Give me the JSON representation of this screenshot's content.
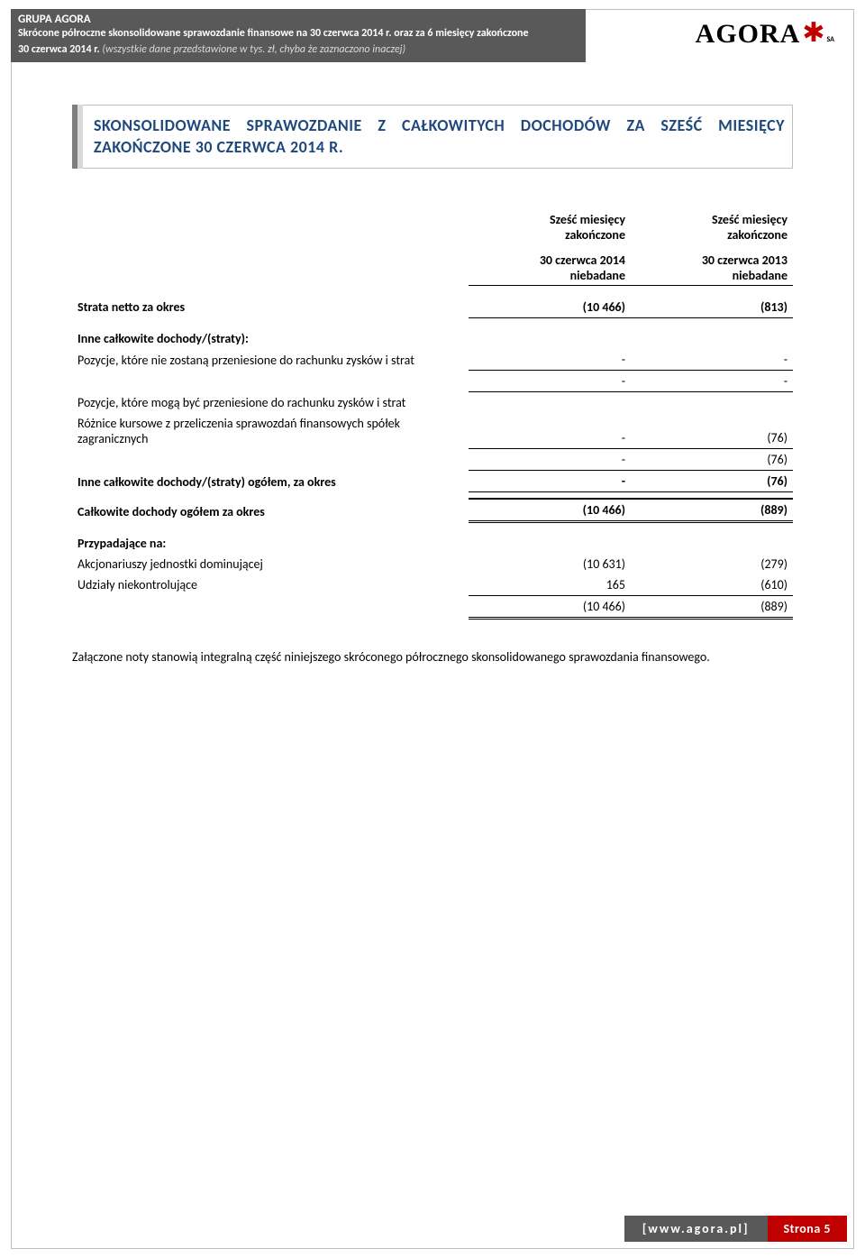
{
  "header": {
    "line1": "GRUPA AGORA",
    "line2": "Skrócone półroczne skonsolidowane sprawozdanie finansowe na 30 czerwca 2014 r. oraz za 6 miesięcy zakończone",
    "line3_bold": "30 czerwca 2014 r.",
    "line3_rest": " (wszystkie dane przedstawione w tys. zł, chyba że zaznaczono inaczej)"
  },
  "logo": {
    "text": "AGORA",
    "suffix": "SA"
  },
  "title": "SKONSOLIDOWANE SPRAWOZDANIE Z CAŁKOWITYCH DOCHODÓW ZA SZEŚĆ MIESIĘCY ZAKOŃCZONE 30 CZERWCA 2014 R.",
  "col_headers": {
    "c1_a": "Sześć miesięcy",
    "c1_b": "zakończone",
    "c2_a": "Sześć miesięcy",
    "c2_b": "zakończone",
    "c1_c": "30 czerwca 2014",
    "c1_d": "niebadane",
    "c2_c": "30 czerwca 2013",
    "c2_d": "niebadane"
  },
  "rows": {
    "strata": {
      "label": "Strata netto za okres",
      "v1": "(10 466)",
      "v2": "(813)"
    },
    "inne_heading": "Inne całkowite dochody/(straty):",
    "pozycje_nie": {
      "label": "Pozycje, które nie zostaną przeniesione do rachunku zysków i strat",
      "v1": "-",
      "v2": "-"
    },
    "blank1": {
      "v1": "-",
      "v2": "-"
    },
    "pozycje_moga": "Pozycje, które mogą być przeniesione do rachunku zysków i strat",
    "roznice": {
      "label": "Różnice kursowe z przeliczenia sprawozdań finansowych spółek zagranicznych",
      "v1": "-",
      "v2": "(76)"
    },
    "blank2": {
      "v1": "-",
      "v2": "(76)"
    },
    "inne_ogolem": {
      "label": "Inne całkowite dochody/(straty) ogółem, za okres",
      "v1": "-",
      "v2": "(76)"
    },
    "calkowite": {
      "label": "Całkowite dochody ogółem za okres",
      "v1": "(10 466)",
      "v2": "(889)"
    },
    "przypadajace": "Przypadające na:",
    "akcjonariuszy": {
      "label": "Akcjonariuszy jednostki dominującej",
      "v1": "(10 631)",
      "v2": "(279)"
    },
    "udzialy": {
      "label": "Udziały niekontrolujące",
      "v1": "165",
      "v2": "(610)"
    },
    "total": {
      "v1": "(10 466)",
      "v2": "(889)"
    }
  },
  "note": "Załączone noty stanowią integralną część niniejszego skróconego półrocznego skonsolidowanego sprawozdania finansowego.",
  "footer": {
    "url": "[www.agora.pl]",
    "page": "Strona 5"
  }
}
